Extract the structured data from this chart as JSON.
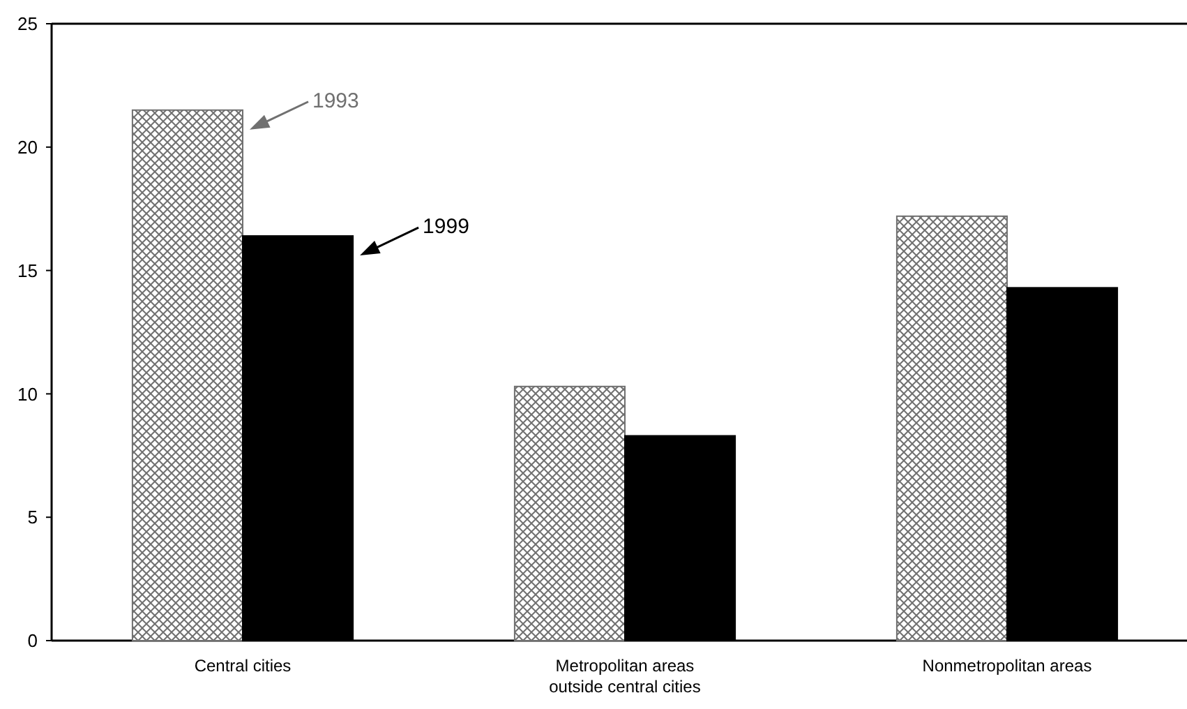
{
  "chart_data": {
    "type": "bar",
    "categories": [
      "Central cities",
      "Metropolitan areas outside central cities",
      "Nonmetropolitan areas"
    ],
    "series": [
      {
        "name": "1993",
        "color": "#707070",
        "values": [
          21.5,
          10.3,
          17.2
        ]
      },
      {
        "name": "1999",
        "color": "#000000",
        "values": [
          16.4,
          8.3,
          14.3
        ]
      }
    ],
    "ylim": [
      0,
      25
    ],
    "yticks": [
      0,
      5,
      10,
      15,
      20,
      25
    ],
    "grid": false,
    "legend": "top left"
  }
}
